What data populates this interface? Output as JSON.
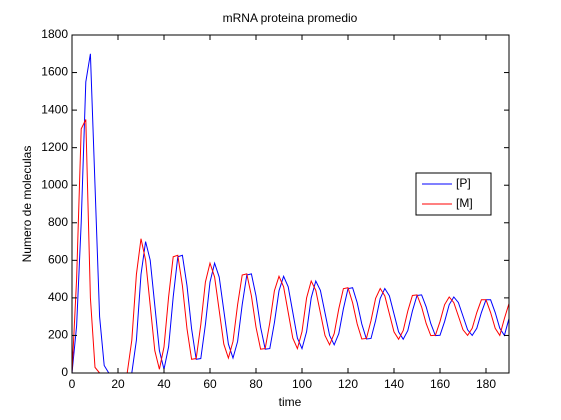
{
  "chart_data": {
    "type": "line",
    "title": "mRNA proteina promedio",
    "x_label": "time",
    "y_label": "Numero de moleculas",
    "x": [
      0,
      2,
      4,
      6,
      8,
      10,
      12,
      14,
      16,
      18,
      20,
      22,
      24,
      26,
      28,
      30,
      32,
      34,
      36,
      38,
      40,
      42,
      44,
      46,
      48,
      50,
      52,
      54,
      56,
      58,
      60,
      62,
      64,
      66,
      68,
      70,
      72,
      74,
      76,
      78,
      80,
      82,
      84,
      86,
      88,
      90,
      92,
      94,
      96,
      98,
      100,
      102,
      104,
      106,
      108,
      110,
      112,
      114,
      116,
      118,
      120,
      122,
      124,
      126,
      128,
      130,
      132,
      134,
      136,
      138,
      140,
      142,
      144,
      146,
      148,
      150,
      152,
      154,
      156,
      158,
      160,
      162,
      164,
      166,
      168,
      170,
      172,
      174,
      176,
      178,
      180,
      182,
      184,
      186,
      188,
      190
    ],
    "series": [
      {
        "name": "[P]",
        "color": "#0000ff",
        "values": [
          0,
          250,
          800,
          1550,
          1700,
          1000,
          300,
          40,
          0,
          0,
          0,
          0,
          0,
          0,
          175,
          525,
          700,
          601,
          360,
          119,
          20,
          139,
          405,
          619,
          627,
          465,
          235,
          73,
          77,
          258,
          484,
          585,
          511,
          333,
          154,
          80,
          168,
          364,
          522,
          528,
          411,
          244,
          127,
          130,
          268,
          438,
          515,
          459,
          323,
          186,
          130,
          220,
          400,
          490,
          440,
          320,
          200,
          150,
          210,
          342,
          449,
          454,
          374,
          261,
          181,
          184,
          279,
          397,
          450,
          411,
          315,
          219,
          180,
          226,
          330,
          413,
          416,
          352,
          263,
          199,
          201,
          274,
          364,
          405,
          375,
          303,
          230,
          200,
          238,
          322,
          390,
          390,
          322,
          238,
          200,
          290
        ]
      },
      {
        "name": "[M]",
        "color": "#ff0000",
        "values": [
          0,
          500,
          1300,
          1350,
          400,
          30,
          0,
          0,
          0,
          0,
          0,
          0,
          0,
          175,
          525,
          715,
          601,
          360,
          119,
          20,
          139,
          405,
          619,
          627,
          465,
          235,
          73,
          77,
          258,
          484,
          585,
          511,
          333,
          154,
          80,
          168,
          364,
          522,
          528,
          411,
          244,
          127,
          130,
          268,
          438,
          515,
          459,
          323,
          186,
          130,
          220,
          400,
          490,
          440,
          320,
          200,
          150,
          210,
          342,
          449,
          454,
          374,
          261,
          181,
          184,
          279,
          397,
          450,
          411,
          315,
          219,
          180,
          226,
          330,
          413,
          416,
          352,
          263,
          199,
          201,
          274,
          364,
          405,
          375,
          303,
          230,
          200,
          238,
          322,
          390,
          390,
          322,
          238,
          200,
          290,
          370
        ]
      }
    ],
    "xlim": [
      0,
      190
    ],
    "ylim": [
      0,
      1800
    ],
    "xticks": [
      0,
      20,
      40,
      60,
      80,
      100,
      120,
      140,
      160,
      180
    ],
    "yticks": [
      0,
      200,
      400,
      600,
      800,
      1000,
      1200,
      1400,
      1600,
      1800
    ],
    "legend": "east"
  }
}
